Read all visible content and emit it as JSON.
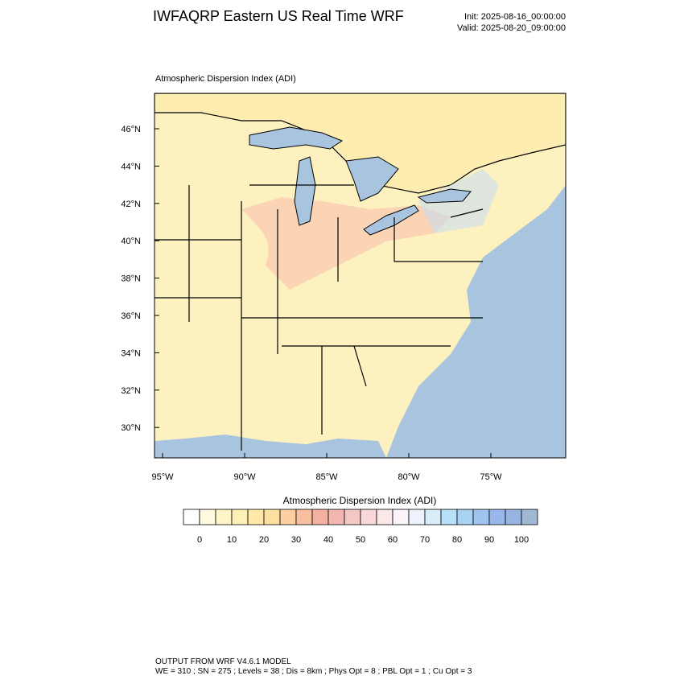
{
  "header": {
    "title": "IWFAQRP Eastern US Real Time WRF",
    "init": "Init: 2025-08-16_00:00:00",
    "valid": "Valid: 2025-08-20_09:00:00"
  },
  "map": {
    "subtitle": "Atmospheric Dispersion Index   (ADI)",
    "lat_labels": [
      "46°N",
      "44°N",
      "42°N",
      "40°N",
      "38°N",
      "36°N",
      "34°N",
      "32°N",
      "30°N"
    ],
    "lon_labels": [
      "95°W",
      "90°W",
      "85°W",
      "80°W",
      "75°W"
    ]
  },
  "colorbar": {
    "title": "Atmospheric Dispersion Index  (ADI)",
    "colors": [
      "#ffffff",
      "#fffbe0",
      "#fff5c8",
      "#fff0b8",
      "#ffe8a8",
      "#fde0a0",
      "#fcd0a0",
      "#f8c0a0",
      "#f4b0a0",
      "#f2b8b0",
      "#f4c8c4",
      "#f8d8d8",
      "#fbe8e8",
      "#fbf4f8",
      "#eef2fc",
      "#d8ecfa",
      "#b8e0f8",
      "#a8d4f4",
      "#a0c4f0",
      "#98b8ec",
      "#98b4e0",
      "#a0b8d4"
    ],
    "tick_labels": [
      "0",
      "10",
      "20",
      "30",
      "40",
      "50",
      "60",
      "70",
      "80",
      "90",
      "100"
    ]
  },
  "footer": {
    "lines": [
      "OUTPUT FROM WRF V4.6.1 MODEL",
      "WE = 310 ; SN = 275 ; Levels = 38 ; Dis = 8km ; Phys Opt = 8 ; PBL Opt = 1 ; Cu Opt = 3"
    ]
  }
}
